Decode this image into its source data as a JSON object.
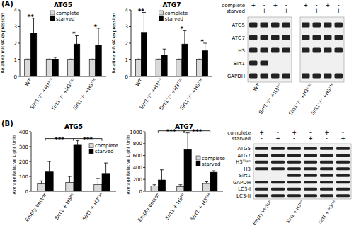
{
  "panels": [
    "(A)",
    "(B)"
  ],
  "chart_data": [
    {
      "type": "bar",
      "title": "ATG5",
      "y_label": "Relative mRNA expression",
      "categories": [
        "WT",
        "Sirt1⁻/⁻ +H3ᵂᵀ",
        "Sirt1⁻/⁻ +H3ᵀ³ᴰ",
        "Sirt1⁻/⁻ +H3ᵀ³ᴱ"
      ],
      "series": [
        {
          "name": "complete",
          "color": "#d9d9d9",
          "values": [
            1,
            1,
            1,
            1
          ],
          "errors": [
            0.05,
            0.05,
            0.05,
            0.05
          ]
        },
        {
          "name": "starved",
          "color": "#000000",
          "values": [
            2.6,
            1.05,
            1.95,
            1.9
          ],
          "errors": [
            0.9,
            0.1,
            0.5,
            1.0
          ]
        }
      ],
      "ylim": [
        0,
        4
      ],
      "yticks": [
        0,
        1,
        2,
        3,
        4
      ],
      "legend": "top",
      "annotations": [
        {
          "label": "**",
          "category": 0
        },
        {
          "label": "*",
          "category": 2
        },
        {
          "label": "*",
          "category": 3
        }
      ]
    },
    {
      "type": "bar",
      "title": "ATG7",
      "y_label": "Relative mRNA expression",
      "categories": [
        "WT",
        "Sirt1⁻/⁻ +H3ᵂᵀ",
        "Sirt1⁻/⁻ +H3ᵀ³ᴰ",
        "Sirt1⁻/⁻ +H3ᵀ³ᴱ"
      ],
      "series": [
        {
          "name": "complete",
          "color": "#d9d9d9",
          "values": [
            1,
            1,
            1,
            1
          ],
          "errors": [
            0.05,
            0.05,
            0.05,
            0.05
          ]
        },
        {
          "name": "starved",
          "color": "#000000",
          "values": [
            2.65,
            1.3,
            1.95,
            1.55
          ],
          "errors": [
            1.2,
            0.35,
            0.8,
            0.45
          ]
        }
      ],
      "ylim": [
        0,
        4
      ],
      "yticks": [
        0,
        1,
        2,
        3,
        4
      ],
      "legend": "top",
      "annotations": [
        {
          "label": "**",
          "category": 0
        },
        {
          "label": "*",
          "category": 2
        },
        {
          "label": "*",
          "category": 3
        }
      ]
    },
    {
      "type": "bar",
      "title": "ATG5",
      "y_label": "Average Relative Light Units",
      "categories": [
        "Empty vector",
        "Sirt1 + H3ᵂᵀ",
        "Sirt1 + H3ᵀ³ᴬ"
      ],
      "series": [
        {
          "name": "complete",
          "color": "#d9d9d9",
          "values": [
            50,
            60,
            45
          ],
          "errors": [
            20,
            40,
            40
          ]
        },
        {
          "name": "starved",
          "color": "#000000",
          "values": [
            130,
            310,
            120
          ],
          "errors": [
            70,
            30,
            70
          ]
        }
      ],
      "ylim": [
        0,
        400
      ],
      "yticks": [
        0,
        100,
        200,
        300,
        400
      ],
      "legend": "upper-right",
      "annotations": [
        {
          "label": "***",
          "from": 0,
          "to": 1
        },
        {
          "label": "***",
          "from": 1,
          "to": 2
        }
      ]
    },
    {
      "type": "bar",
      "title": "ATG7",
      "y_label": "Average Relative Light Units",
      "categories": [
        "Empty vector",
        "Sirt1 + H3ᵂᵀ",
        "Sirt1 + H3ᵀ³ᴬ"
      ],
      "series": [
        {
          "name": "complete",
          "color": "#d9d9d9",
          "values": [
            90,
            80,
            130
          ],
          "errors": [
            20,
            30,
            30
          ]
        },
        {
          "name": "starved",
          "color": "#000000",
          "values": [
            190,
            700,
            320
          ],
          "errors": [
            170,
            280,
            25
          ]
        }
      ],
      "ylim": [
        0,
        1000
      ],
      "yticks": [
        0,
        200,
        400,
        600,
        800,
        1000
      ],
      "legend": "center-right",
      "annotations": [
        {
          "label": "***",
          "from": 0,
          "to": 1
        },
        {
          "label": "***",
          "from": 1,
          "to": 2
        }
      ]
    }
  ],
  "blots": [
    {
      "conditions": [
        {
          "label": "complete",
          "signs": [
            "+",
            "-",
            "+",
            "-",
            "+",
            "-",
            "+",
            "-"
          ]
        },
        {
          "label": "starved",
          "signs": [
            "-",
            "+",
            "-",
            "+",
            "-",
            "+",
            "-",
            "+"
          ]
        }
      ],
      "blocks": [
        {
          "groups": [
            {
              "label": "WT",
              "lanes": 2
            },
            {
              "label": "Sirt1⁻/⁻ +H3ᵂᵀ",
              "lanes": 2
            }
          ]
        },
        {
          "groups": [
            {
              "label": "Sirt1⁻/⁻ +H3ᵀ³ᴰ",
              "lanes": 2
            },
            {
              "label": "Sirt1⁻/⁻ +H3ᵀ³ᴱ",
              "lanes": 2
            }
          ]
        }
      ],
      "rows": [
        {
          "label": "ATG5",
          "bands": [
            true,
            true,
            true,
            true,
            true,
            true,
            true,
            true
          ]
        },
        {
          "label": "ATG7",
          "bands": [
            true,
            true,
            true,
            true,
            true,
            true,
            true,
            true
          ]
        },
        {
          "label": "H3",
          "bands": [
            true,
            true,
            true,
            true,
            true,
            true,
            true,
            true
          ]
        },
        {
          "label": "Sirt1",
          "bands": [
            true,
            true,
            false,
            false,
            false,
            false,
            false,
            false
          ]
        },
        {
          "label": "GAPDH",
          "bands": [
            true,
            true,
            true,
            true,
            true,
            true,
            true,
            true
          ]
        }
      ]
    },
    {
      "conditions": [
        {
          "label": "complete",
          "signs": [
            "+",
            "-",
            "+",
            "-",
            "+",
            "-"
          ]
        },
        {
          "label": "starved",
          "signs": [
            "-",
            "+",
            "-",
            "+",
            "-",
            "+"
          ]
        }
      ],
      "blocks": [
        {
          "groups": [
            {
              "label": "Empty vector",
              "lanes": 2
            },
            {
              "label": "Sirt1 + H3ᵂᵀ",
              "lanes": 2
            },
            {
              "label": "Sirt1 + H3ᵀ³ᴬ",
              "lanes": 2
            }
          ]
        }
      ],
      "rows": [
        {
          "label": "ATG5",
          "bands": [
            true,
            true,
            true,
            true,
            true,
            true
          ]
        },
        {
          "label": "ATG7",
          "bands": [
            true,
            true,
            true,
            true,
            true,
            true
          ]
        },
        {
          "label": "H3ᵀ³ᵖʰ",
          "bands": [
            true,
            true,
            true,
            true,
            true,
            true
          ]
        },
        {
          "label": "H3",
          "bands": [
            true,
            true,
            true,
            true,
            true,
            true
          ]
        },
        {
          "label": "Sirt1",
          "bands": [
            false,
            false,
            true,
            true,
            true,
            true
          ]
        },
        {
          "label": "GAPDH",
          "bands": [
            true,
            true,
            true,
            true,
            true,
            true
          ]
        },
        {
          "label": "LC3-I",
          "bands": [
            true,
            true,
            true,
            true,
            true,
            true
          ]
        },
        {
          "label": "LC3-II",
          "bands": [
            true,
            true,
            true,
            true,
            true,
            true
          ]
        }
      ]
    }
  ]
}
